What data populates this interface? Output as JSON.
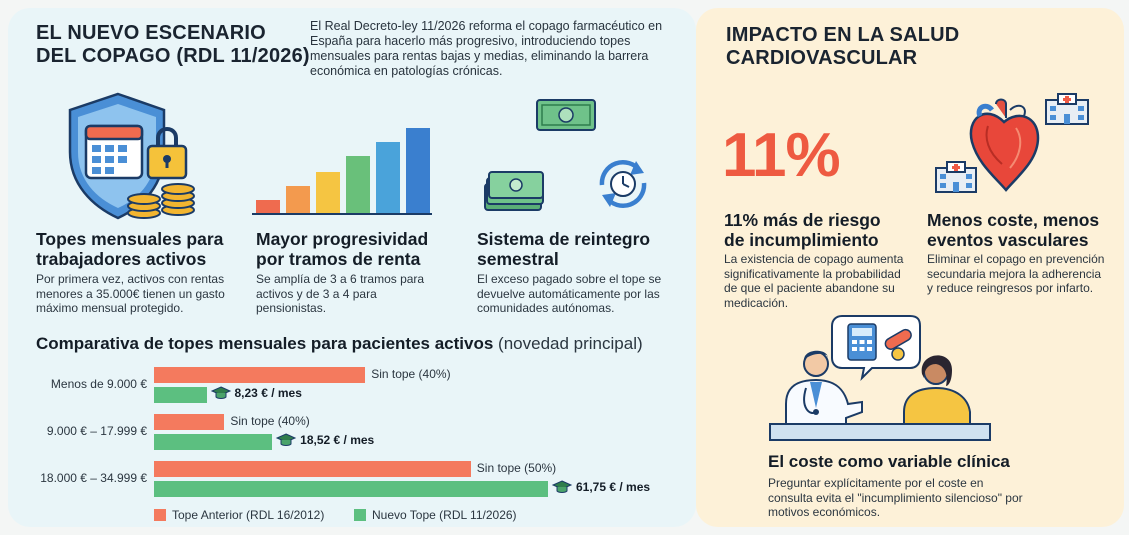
{
  "left_panel": {
    "title_line1": "EL NUEVO ESCENARIO",
    "title_line2": "DEL COPAGO (RDL 11/2026)",
    "intro": "El Real Decreto-ley 11/2026 reforma el copago farmacéutico en España para hacerlo más progresivo, introduciendo topes mensuales para rentas bajas y medias, eliminando la barrera económica en patologías crónicas.",
    "features": [
      {
        "title_line1": "Topes mensuales para",
        "title_line2": "trabajadores activos",
        "desc": "Por primera vez, activos con rentas menores a 35.000€ tienen un gasto máximo mensual protegido."
      },
      {
        "title_line1": "Mayor progresividad",
        "title_line2": "por tramos de renta",
        "desc": "Se amplía de 3 a 6 tramos para activos y de 3 a 4 para pensionistas."
      },
      {
        "title_line1": "Sistema de reintegro",
        "title_line2": "semestral",
        "desc": "El exceso pagado sobre el tope se devuelve automáticamente por las comunidades autónomas."
      }
    ]
  },
  "chart_title": "Comparativa de topes mensuales para pacientes activos",
  "chart_subtitle": "(novedad principal)",
  "chart_data": {
    "type": "bar",
    "orientation": "horizontal",
    "categories": [
      "Menos de 9.000 €",
      "9.000 € – 17.999 €",
      "18.000 € – 34.999 €"
    ],
    "series": [
      {
        "name": "Tope Anterior (RDL 16/2012)",
        "color": "#f47a5e",
        "labels": [
          "Sin tope (40%)",
          "Sin tope (40%)",
          "Sin tope (50%)"
        ],
        "relative_length": [
          0.48,
          0.16,
          0.72
        ]
      },
      {
        "name": "Nuevo Tope (RDL 11/2026)",
        "color": "#5cbf80",
        "labels": [
          "8,23 € / mes",
          "18,52 € / mes",
          "61,75 € / mes"
        ],
        "values": [
          8.23,
          18.52,
          61.75
        ]
      }
    ],
    "legend_position": "bottom",
    "grid": false
  },
  "right_panel": {
    "title_line1": "IMPACTO EN LA SALUD",
    "title_line2": "CARDIOVASCULAR",
    "big_stat": "11%",
    "stat_title_line1": "11% más de riesgo",
    "stat_title_line2": "de incumplimiento",
    "stat_desc": "La existencia de copago aumenta significativamente la probabilidad de que el paciente abandone su medicación.",
    "cost_title_line1": "Menos coste, menos",
    "cost_title_line2": "eventos vasculares",
    "cost_desc": "Eliminar el copago en prevención secundaria mejora la adherencia y reduce reingresos por infarto.",
    "clinical_title": "El coste como variable clínica",
    "clinical_desc": "Preguntar explícitamente por el coste en consulta evita el \"incumplimiento silencioso\" por motivos económicos."
  },
  "icons": [
    "shield-calendar-lock-icon",
    "bar-growth-icon",
    "banknote-icon",
    "money-stack-icon",
    "refresh-clock-icon",
    "heart-icon",
    "hospital-icon",
    "doctor-patient-illustration",
    "graduation-cap-icon"
  ]
}
